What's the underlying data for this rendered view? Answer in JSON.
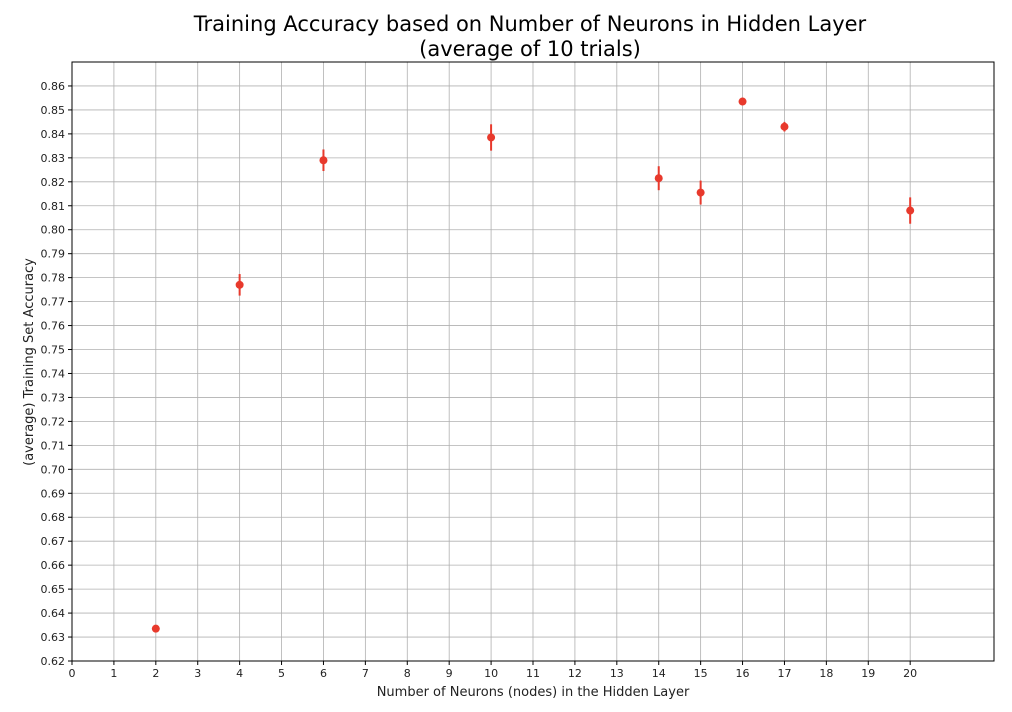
{
  "chart_data": {
    "type": "scatter",
    "title": [
      "Training Accuracy based on Number of Neurons in Hidden Layer",
      "(average of 10 trials)"
    ],
    "xlabel": "Number of Neurons (nodes) in the Hidden Layer",
    "ylabel": "(average) Training Set Accuracy",
    "xlim": [
      0,
      22
    ],
    "ylim": [
      0.62,
      0.87
    ],
    "x_ticks": [
      0,
      1,
      2,
      3,
      4,
      5,
      6,
      7,
      8,
      9,
      10,
      11,
      12,
      13,
      14,
      15,
      16,
      17,
      18,
      19,
      20
    ],
    "y_ticks": [
      0.62,
      0.63,
      0.64,
      0.65,
      0.66,
      0.67,
      0.68,
      0.69,
      0.7,
      0.71,
      0.72,
      0.73,
      0.74,
      0.75,
      0.76,
      0.77,
      0.78,
      0.79,
      0.8,
      0.81,
      0.82,
      0.83,
      0.84,
      0.85,
      0.86
    ],
    "x_tick_labels": [
      "0",
      "1",
      "2",
      "3",
      "4",
      "5",
      "6",
      "7",
      "8",
      "9",
      "10",
      "11",
      "12",
      "13",
      "14",
      "15",
      "16",
      "17",
      "18",
      "19",
      "20"
    ],
    "y_tick_labels": [
      "0.62",
      "0.63",
      "0.64",
      "0.65",
      "0.66",
      "0.67",
      "0.68",
      "0.69",
      "0.70",
      "0.71",
      "0.72",
      "0.73",
      "0.74",
      "0.75",
      "0.76",
      "0.77",
      "0.78",
      "0.79",
      "0.80",
      "0.81",
      "0.82",
      "0.83",
      "0.84",
      "0.85",
      "0.86"
    ],
    "grid": true,
    "marker_color": "#e8392c",
    "points": [
      {
        "x": 2,
        "y": 0.6335,
        "err": 0.0015
      },
      {
        "x": 4,
        "y": 0.777,
        "err": 0.0045
      },
      {
        "x": 6,
        "y": 0.829,
        "err": 0.0045
      },
      {
        "x": 10,
        "y": 0.8385,
        "err": 0.0055
      },
      {
        "x": 14,
        "y": 0.8215,
        "err": 0.005
      },
      {
        "x": 15,
        "y": 0.8155,
        "err": 0.005
      },
      {
        "x": 16,
        "y": 0.8535,
        "err": 0.001
      },
      {
        "x": 17,
        "y": 0.843,
        "err": 0.002
      },
      {
        "x": 20,
        "y": 0.808,
        "err": 0.0055
      }
    ]
  }
}
